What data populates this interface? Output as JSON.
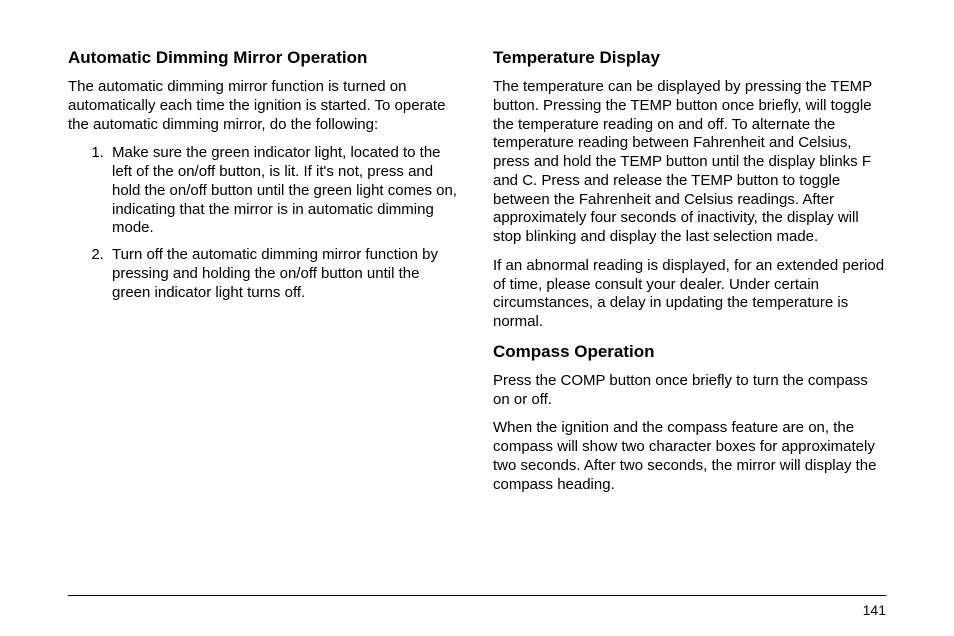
{
  "page_number": "141",
  "left": {
    "heading1": "Automatic Dimming Mirror Operation",
    "para1": "The automatic dimming mirror function is turned on automatically each time the ignition is started. To operate the automatic dimming mirror, do the following:",
    "list1_item1": "Make sure the green indicator light, located to the left of the on/off button, is lit. If it's not, press and hold the on/off button until the green light comes on, indicating that the mirror is in automatic dimming mode.",
    "list1_item2": "Turn off the automatic dimming mirror function by pressing and holding the on/off button until the green indicator light turns off."
  },
  "right": {
    "heading1": "Temperature Display",
    "para1": "The temperature can be displayed by pressing the TEMP button. Pressing the TEMP button once briefly, will toggle the temperature reading on and off. To alternate the temperature reading between Fahrenheit and Celsius, press and hold the TEMP button until the display blinks F and C. Press and release the TEMP button to toggle between the Fahrenheit and Celsius readings. After approximately four seconds of inactivity, the display will stop blinking and display the last selection made.",
    "para2": "If an abnormal reading is displayed, for an extended period of time, please consult your dealer. Under certain circumstances, a delay in updating the temperature is normal.",
    "heading2": "Compass Operation",
    "para3": "Press the COMP button once briefly to turn the compass on or off.",
    "para4": "When the ignition and the compass feature are on, the compass will show two character boxes for approximately two seconds. After two seconds, the mirror will display the compass heading."
  }
}
